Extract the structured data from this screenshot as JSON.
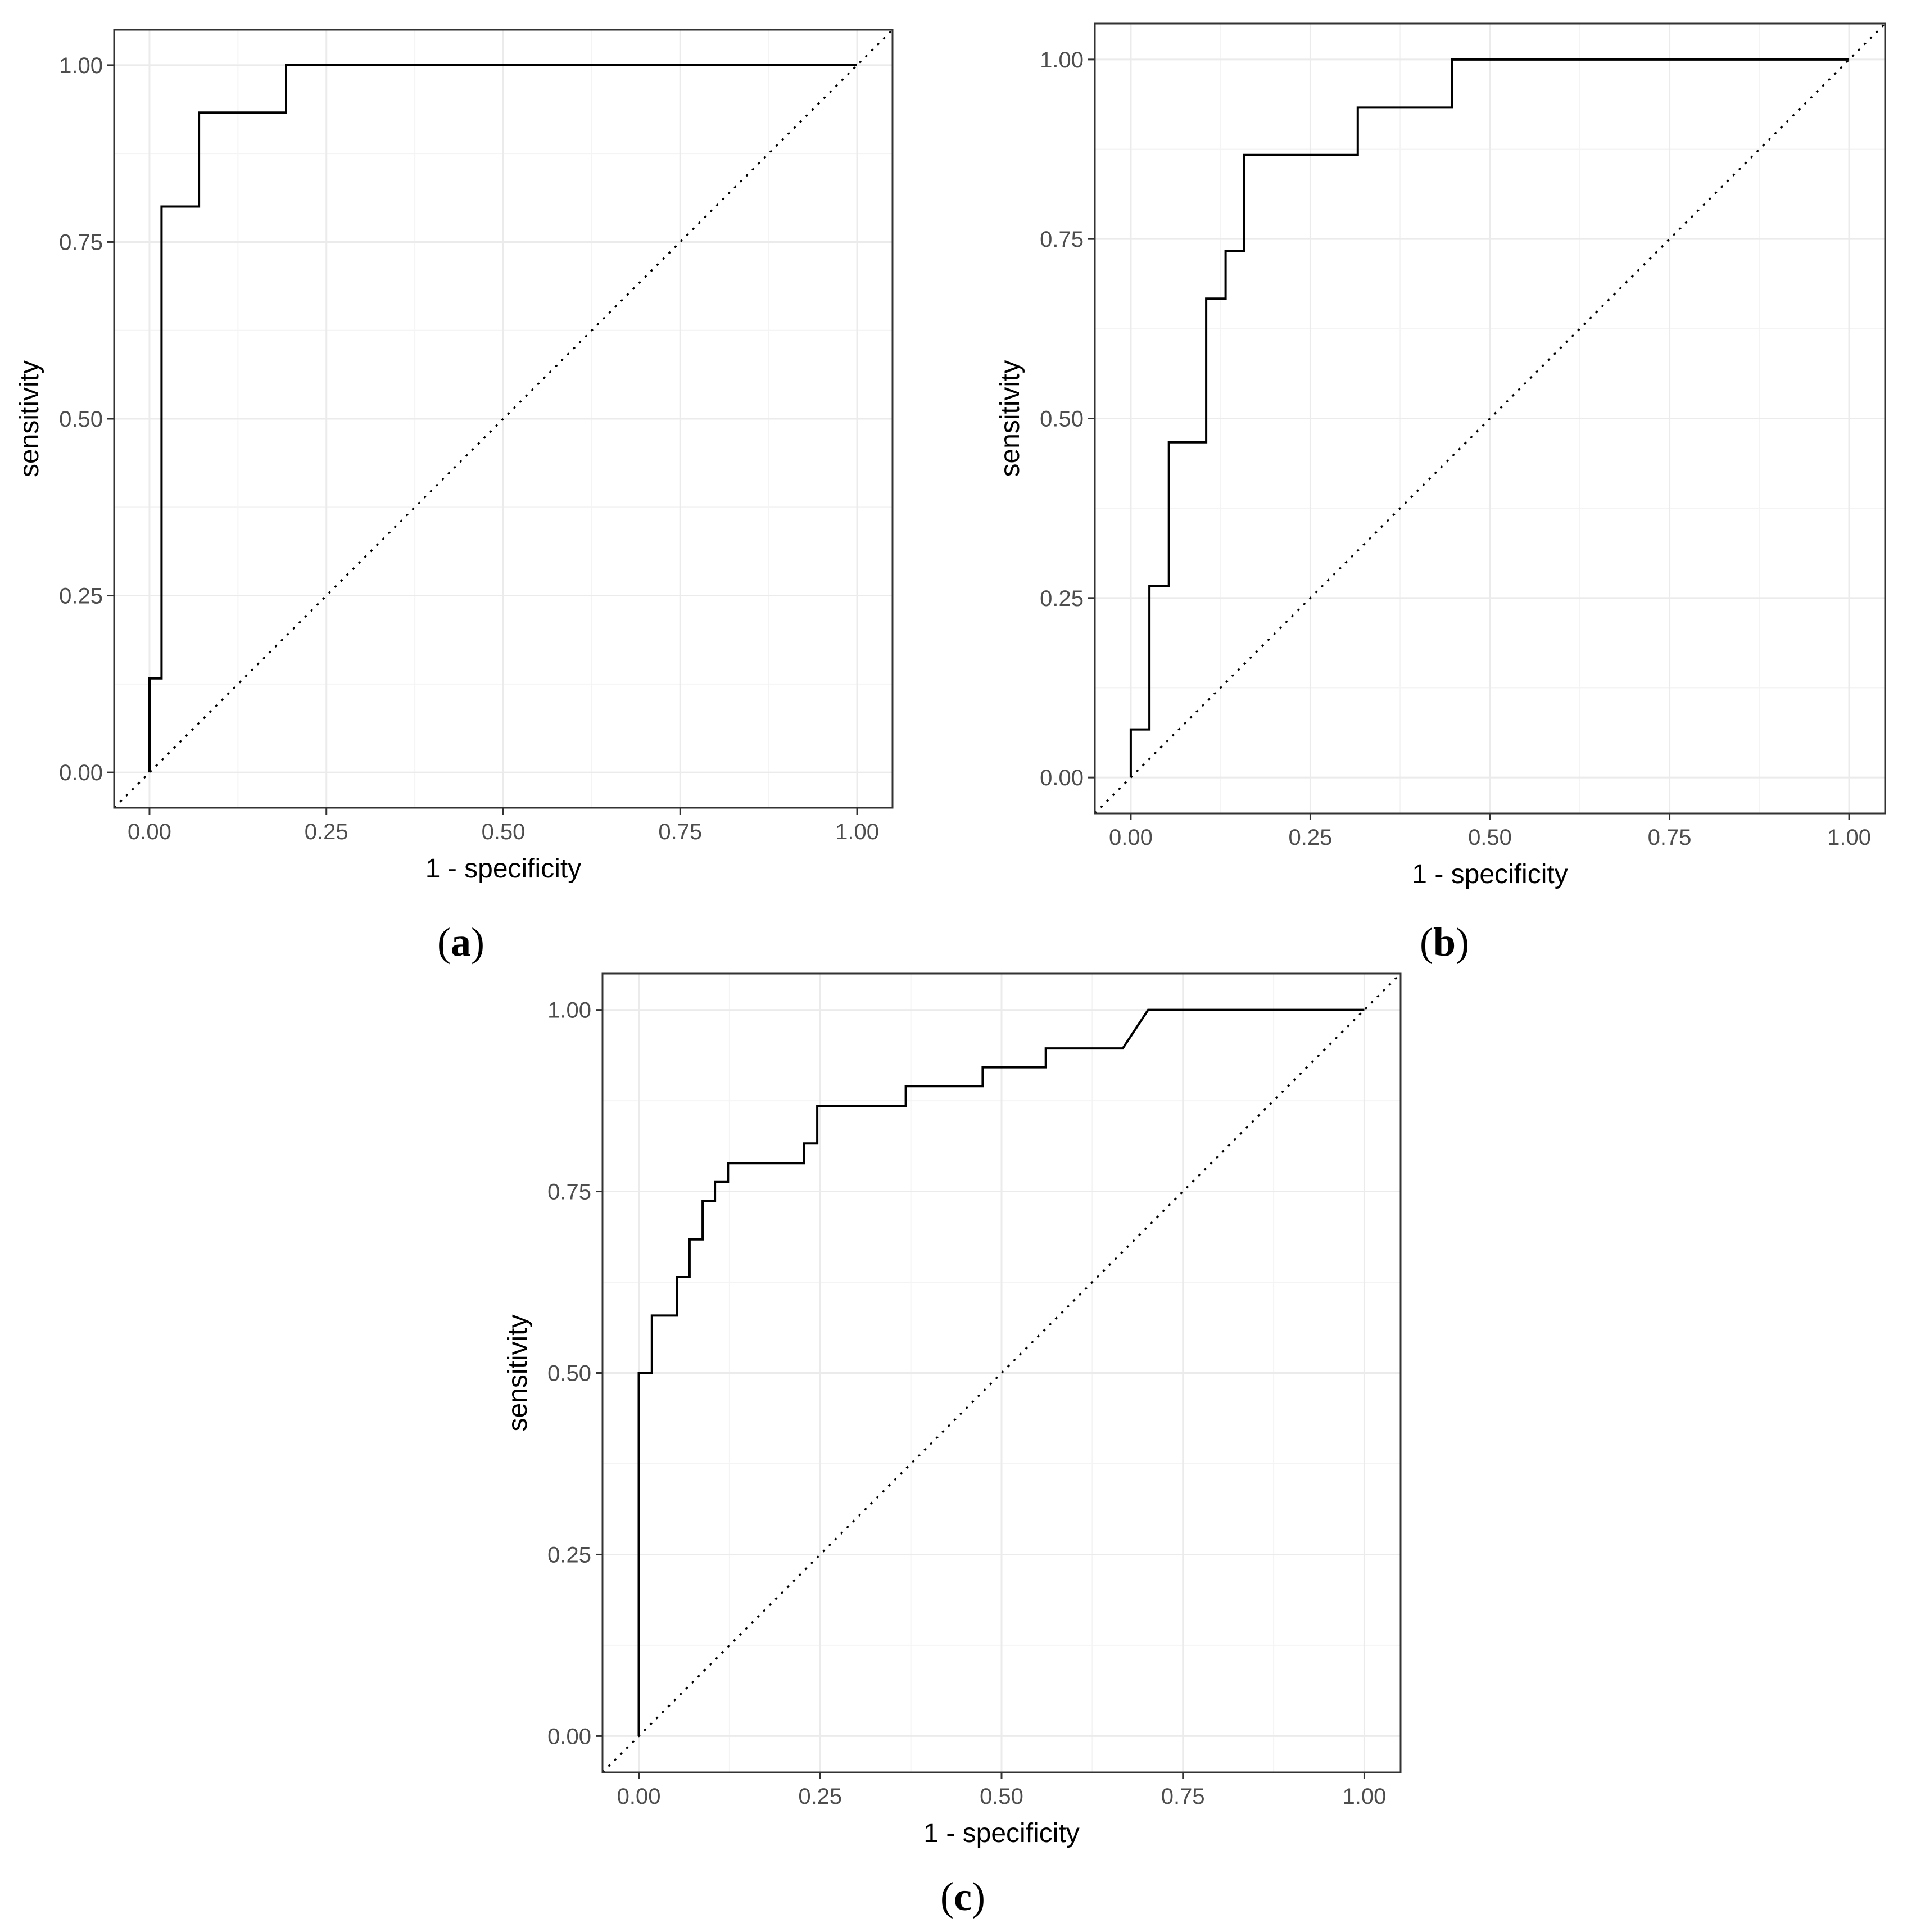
{
  "chart_data": [
    {
      "type": "line",
      "panel_label": "a",
      "xlabel": "1 - specificity",
      "ylabel": "sensitivity",
      "xlim": [
        -0.05,
        1.05
      ],
      "ylim": [
        -0.05,
        1.05
      ],
      "x_ticks": [
        0,
        0.25,
        0.5,
        0.75,
        1
      ],
      "y_ticks": [
        0,
        0.25,
        0.5,
        0.75,
        1
      ],
      "x_tick_labels": [
        "0.00",
        "0.25",
        "0.50",
        "0.75",
        "1.00"
      ],
      "y_tick_labels": [
        "0.00",
        "0.25",
        "0.50",
        "0.75",
        "1.00"
      ],
      "grid": true,
      "reference_line": {
        "style": "dotted",
        "x": [
          0,
          1
        ],
        "y": [
          0,
          1
        ]
      },
      "series": [
        {
          "x": [
            0,
            0,
            0.017,
            0.017,
            0.07,
            0.07,
            0.193,
            0.193,
            1
          ],
          "y": [
            0,
            0.133,
            0.133,
            0.8,
            0.8,
            0.933,
            0.933,
            1,
            1
          ]
        }
      ]
    },
    {
      "type": "line",
      "panel_label": "b",
      "xlabel": "1 - specificity",
      "ylabel": "sensitivity",
      "xlim": [
        -0.05,
        1.05
      ],
      "ylim": [
        -0.05,
        1.05
      ],
      "x_ticks": [
        0,
        0.25,
        0.5,
        0.75,
        1
      ],
      "y_ticks": [
        0,
        0.25,
        0.5,
        0.75,
        1
      ],
      "x_tick_labels": [
        "0.00",
        "0.25",
        "0.50",
        "0.75",
        "1.00"
      ],
      "y_tick_labels": [
        "0.00",
        "0.25",
        "0.50",
        "0.75",
        "1.00"
      ],
      "grid": true,
      "reference_line": {
        "style": "dotted",
        "x": [
          0,
          1
        ],
        "y": [
          0,
          1
        ]
      },
      "series": [
        {
          "x": [
            0,
            0,
            0.026,
            0.026,
            0.053,
            0.053,
            0.105,
            0.105,
            0.132,
            0.132,
            0.158,
            0.158,
            0.316,
            0.316,
            0.447,
            0.447,
            1
          ],
          "y": [
            0,
            0.067,
            0.067,
            0.267,
            0.267,
            0.467,
            0.467,
            0.667,
            0.667,
            0.733,
            0.733,
            0.867,
            0.867,
            0.933,
            0.933,
            1,
            1
          ]
        }
      ]
    },
    {
      "type": "line",
      "panel_label": "c",
      "xlabel": "1 - specificity",
      "ylabel": "sensitivity",
      "xlim": [
        -0.05,
        1.05
      ],
      "ylim": [
        -0.05,
        1.05
      ],
      "x_ticks": [
        0,
        0.25,
        0.5,
        0.75,
        1
      ],
      "y_ticks": [
        0,
        0.25,
        0.5,
        0.75,
        1
      ],
      "x_tick_labels": [
        "0.00",
        "0.25",
        "0.50",
        "0.75",
        "1.00"
      ],
      "y_tick_labels": [
        "0.00",
        "0.25",
        "0.50",
        "0.75",
        "1.00"
      ],
      "grid": true,
      "reference_line": {
        "style": "dotted",
        "x": [
          0,
          1
        ],
        "y": [
          0,
          1
        ]
      },
      "series": [
        {
          "x": [
            0,
            0,
            0.018,
            0.018,
            0.053,
            0.053,
            0.07,
            0.07,
            0.088,
            0.088,
            0.105,
            0.105,
            0.123,
            0.123,
            0.228,
            0.228,
            0.246,
            0.246,
            0.368,
            0.368,
            0.474,
            0.474,
            0.561,
            0.561,
            0.667,
            0.702,
            1
          ],
          "y": [
            0,
            0.5,
            0.5,
            0.579,
            0.579,
            0.632,
            0.632,
            0.684,
            0.684,
            0.737,
            0.737,
            0.763,
            0.763,
            0.789,
            0.789,
            0.816,
            0.816,
            0.868,
            0.868,
            0.895,
            0.895,
            0.921,
            0.921,
            0.947,
            0.947,
            1,
            1
          ]
        }
      ]
    }
  ]
}
